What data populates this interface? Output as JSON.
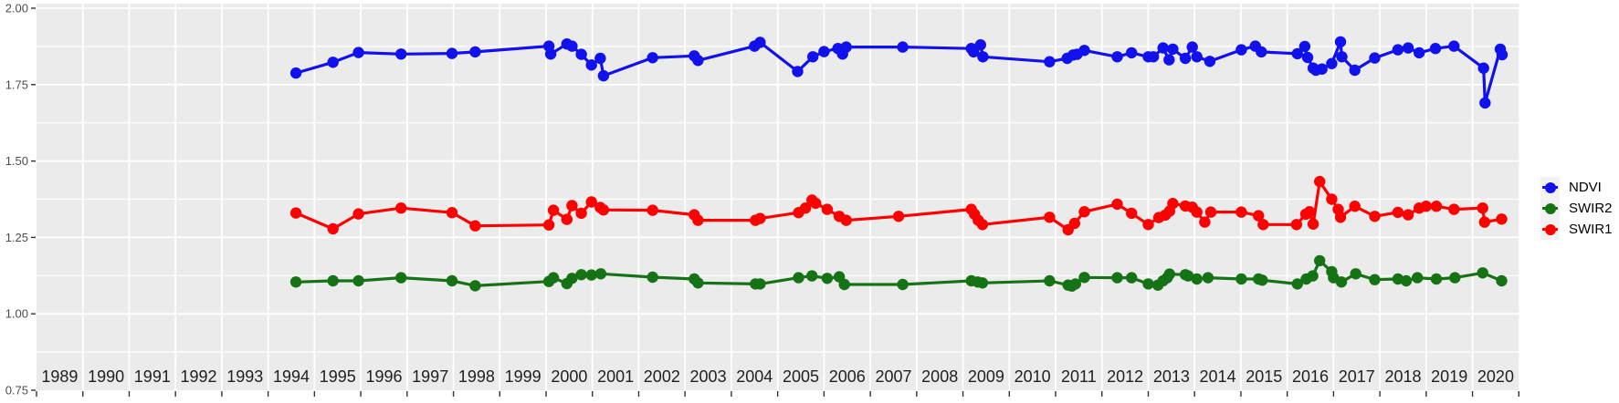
{
  "figure": {
    "background": "#FFFFFF",
    "panel_background": "#EBEBEB",
    "gridline_color": "#FFFFFF",
    "tick_color": "#333333",
    "y_axis_text_color": "#4D4D4D",
    "year_label_color": "#1F1F1F",
    "legend_key_background": "#F2F2F2"
  },
  "legend": {
    "position": "right",
    "entries": [
      {
        "label": "NDVI",
        "color": "#1111EE"
      },
      {
        "label": "SWIR2",
        "color": "#157315"
      },
      {
        "label": "SWIR1",
        "color": "#FF0000"
      }
    ]
  },
  "chart_data": {
    "type": "line",
    "title": "",
    "xlabel": "",
    "ylabel": "",
    "grid": true,
    "legend_position": "right",
    "xlim": [
      1989,
      2021
    ],
    "ylim": [
      0.75,
      2.0
    ],
    "x_tick_years": [
      1989,
      1990,
      1991,
      1992,
      1993,
      1994,
      1995,
      1996,
      1997,
      1998,
      1999,
      2000,
      2001,
      2002,
      2003,
      2004,
      2005,
      2006,
      2007,
      2008,
      2009,
      2010,
      2011,
      2012,
      2013,
      2014,
      2015,
      2016,
      2017,
      2018,
      2019,
      2020
    ],
    "y_tick_labels": [
      "2.00",
      "1.75",
      "1.50",
      "1.25",
      "1.00",
      "0.75"
    ],
    "y_tick_values": [
      2.0,
      1.75,
      1.5,
      1.25,
      1.0,
      0.75
    ],
    "y_minor_values": [
      1.875,
      1.625,
      1.375,
      1.125,
      0.875
    ],
    "series": [
      {
        "name": "NDVI",
        "color": "#1111EE",
        "points": [
          [
            1994.6,
            1.788
          ],
          [
            1995.4,
            1.823
          ],
          [
            1995.95,
            1.855
          ],
          [
            1996.87,
            1.85
          ],
          [
            1997.97,
            1.852
          ],
          [
            1998.47,
            1.857
          ],
          [
            2000.06,
            1.876
          ],
          [
            2000.1,
            1.85
          ],
          [
            2000.45,
            1.883
          ],
          [
            2000.56,
            1.876
          ],
          [
            2000.76,
            1.849
          ],
          [
            2000.98,
            1.814
          ],
          [
            2001.17,
            1.836
          ],
          [
            2001.24,
            1.779
          ],
          [
            2002.3,
            1.838
          ],
          [
            2003.2,
            1.844
          ],
          [
            2003.28,
            1.829
          ],
          [
            2004.5,
            1.876
          ],
          [
            2004.62,
            1.888
          ],
          [
            2005.43,
            1.793
          ],
          [
            2005.76,
            1.841
          ],
          [
            2006.0,
            1.858
          ],
          [
            2006.3,
            1.868
          ],
          [
            2006.4,
            1.85
          ],
          [
            2006.48,
            1.873
          ],
          [
            2007.7,
            1.873
          ],
          [
            2009.18,
            1.868
          ],
          [
            2009.23,
            1.857
          ],
          [
            2009.38,
            1.88
          ],
          [
            2009.43,
            1.841
          ],
          [
            2010.87,
            1.825
          ],
          [
            2011.25,
            1.836
          ],
          [
            2011.38,
            1.847
          ],
          [
            2011.46,
            1.849
          ],
          [
            2011.62,
            1.862
          ],
          [
            2012.33,
            1.841
          ],
          [
            2012.64,
            1.854
          ],
          [
            2013.0,
            1.841
          ],
          [
            2013.11,
            1.841
          ],
          [
            2013.32,
            1.87
          ],
          [
            2013.45,
            1.831
          ],
          [
            2013.53,
            1.866
          ],
          [
            2013.8,
            1.836
          ],
          [
            2013.95,
            1.873
          ],
          [
            2014.05,
            1.841
          ],
          [
            2014.33,
            1.826
          ],
          [
            2015.01,
            1.864
          ],
          [
            2015.31,
            1.876
          ],
          [
            2015.44,
            1.857
          ],
          [
            2016.22,
            1.851
          ],
          [
            2016.38,
            1.875
          ],
          [
            2016.44,
            1.839
          ],
          [
            2016.56,
            1.804
          ],
          [
            2016.62,
            1.797
          ],
          [
            2016.75,
            1.801
          ],
          [
            2016.96,
            1.819
          ],
          [
            2017.15,
            1.89
          ],
          [
            2017.18,
            1.841
          ],
          [
            2017.46,
            1.797
          ],
          [
            2017.89,
            1.837
          ],
          [
            2018.39,
            1.864
          ],
          [
            2018.61,
            1.87
          ],
          [
            2018.85,
            1.854
          ],
          [
            2019.2,
            1.868
          ],
          [
            2019.6,
            1.876
          ],
          [
            2020.24,
            1.804
          ],
          [
            2020.27,
            1.69
          ],
          [
            2020.6,
            1.866
          ],
          [
            2020.64,
            1.848
          ]
        ]
      },
      {
        "name": "SWIR2",
        "color": "#157315",
        "points": [
          [
            1994.6,
            1.104
          ],
          [
            1995.4,
            1.108
          ],
          [
            1995.95,
            1.108
          ],
          [
            1996.87,
            1.118
          ],
          [
            1997.97,
            1.108
          ],
          [
            1998.47,
            1.092
          ],
          [
            2000.06,
            1.106
          ],
          [
            2000.16,
            1.118
          ],
          [
            2000.45,
            1.099
          ],
          [
            2000.56,
            1.116
          ],
          [
            2000.76,
            1.128
          ],
          [
            2000.98,
            1.127
          ],
          [
            2001.18,
            1.131
          ],
          [
            2002.3,
            1.12
          ],
          [
            2003.2,
            1.114
          ],
          [
            2003.28,
            1.101
          ],
          [
            2004.52,
            1.098
          ],
          [
            2004.62,
            1.098
          ],
          [
            2005.45,
            1.118
          ],
          [
            2005.74,
            1.124
          ],
          [
            2006.07,
            1.116
          ],
          [
            2006.33,
            1.121
          ],
          [
            2006.44,
            1.096
          ],
          [
            2007.7,
            1.096
          ],
          [
            2009.18,
            1.108
          ],
          [
            2009.32,
            1.104
          ],
          [
            2009.42,
            1.101
          ],
          [
            2010.87,
            1.108
          ],
          [
            2011.27,
            1.094
          ],
          [
            2011.35,
            1.091
          ],
          [
            2011.43,
            1.098
          ],
          [
            2011.62,
            1.119
          ],
          [
            2012.33,
            1.118
          ],
          [
            2012.64,
            1.118
          ],
          [
            2013.0,
            1.098
          ],
          [
            2013.21,
            1.094
          ],
          [
            2013.32,
            1.108
          ],
          [
            2013.41,
            1.118
          ],
          [
            2013.46,
            1.13
          ],
          [
            2013.8,
            1.128
          ],
          [
            2013.86,
            1.124
          ],
          [
            2014.05,
            1.114
          ],
          [
            2014.29,
            1.118
          ],
          [
            2015.01,
            1.114
          ],
          [
            2015.38,
            1.114
          ],
          [
            2015.46,
            1.11
          ],
          [
            2016.22,
            1.098
          ],
          [
            2016.41,
            1.114
          ],
          [
            2016.55,
            1.124
          ],
          [
            2016.7,
            1.174
          ],
          [
            2016.96,
            1.138
          ],
          [
            2017.0,
            1.118
          ],
          [
            2017.17,
            1.104
          ],
          [
            2017.48,
            1.131
          ],
          [
            2017.89,
            1.112
          ],
          [
            2018.39,
            1.114
          ],
          [
            2018.57,
            1.108
          ],
          [
            2018.81,
            1.118
          ],
          [
            2019.22,
            1.114
          ],
          [
            2019.62,
            1.118
          ],
          [
            2020.22,
            1.134
          ],
          [
            2020.63,
            1.108
          ]
        ]
      },
      {
        "name": "SWIR1",
        "color": "#FF0000",
        "points": [
          [
            1994.6,
            1.33
          ],
          [
            1995.4,
            1.278
          ],
          [
            1995.95,
            1.327
          ],
          [
            1996.87,
            1.346
          ],
          [
            1997.97,
            1.331
          ],
          [
            1998.47,
            1.288
          ],
          [
            2000.06,
            1.291
          ],
          [
            2000.16,
            1.339
          ],
          [
            2000.45,
            1.309
          ],
          [
            2000.56,
            1.354
          ],
          [
            2000.76,
            1.329
          ],
          [
            2000.98,
            1.366
          ],
          [
            2001.17,
            1.348
          ],
          [
            2001.24,
            1.34
          ],
          [
            2002.3,
            1.339
          ],
          [
            2003.2,
            1.324
          ],
          [
            2003.28,
            1.306
          ],
          [
            2004.52,
            1.306
          ],
          [
            2004.62,
            1.312
          ],
          [
            2005.45,
            1.331
          ],
          [
            2005.6,
            1.346
          ],
          [
            2005.74,
            1.372
          ],
          [
            2005.82,
            1.362
          ],
          [
            2006.07,
            1.342
          ],
          [
            2006.33,
            1.319
          ],
          [
            2006.48,
            1.306
          ],
          [
            2007.61,
            1.319
          ],
          [
            2009.18,
            1.342
          ],
          [
            2009.25,
            1.326
          ],
          [
            2009.33,
            1.306
          ],
          [
            2009.42,
            1.292
          ],
          [
            2010.87,
            1.316
          ],
          [
            2011.27,
            1.275
          ],
          [
            2011.41,
            1.296
          ],
          [
            2011.62,
            1.334
          ],
          [
            2012.33,
            1.359
          ],
          [
            2012.64,
            1.329
          ],
          [
            2013.0,
            1.292
          ],
          [
            2013.23,
            1.315
          ],
          [
            2013.37,
            1.323
          ],
          [
            2013.46,
            1.336
          ],
          [
            2013.53,
            1.361
          ],
          [
            2013.8,
            1.353
          ],
          [
            2013.95,
            1.349
          ],
          [
            2014.05,
            1.333
          ],
          [
            2014.22,
            1.3
          ],
          [
            2014.35,
            1.333
          ],
          [
            2015.01,
            1.333
          ],
          [
            2015.38,
            1.321
          ],
          [
            2015.48,
            1.292
          ],
          [
            2016.2,
            1.292
          ],
          [
            2016.4,
            1.326
          ],
          [
            2016.48,
            1.334
          ],
          [
            2016.56,
            1.294
          ],
          [
            2016.7,
            1.433
          ],
          [
            2016.96,
            1.375
          ],
          [
            2017.1,
            1.342
          ],
          [
            2017.15,
            1.316
          ],
          [
            2017.46,
            1.352
          ],
          [
            2017.89,
            1.319
          ],
          [
            2018.39,
            1.332
          ],
          [
            2018.61,
            1.324
          ],
          [
            2018.85,
            1.346
          ],
          [
            2019.0,
            1.352
          ],
          [
            2019.22,
            1.352
          ],
          [
            2019.6,
            1.342
          ],
          [
            2020.22,
            1.346
          ],
          [
            2020.26,
            1.3
          ],
          [
            2020.63,
            1.31
          ]
        ]
      }
    ]
  }
}
